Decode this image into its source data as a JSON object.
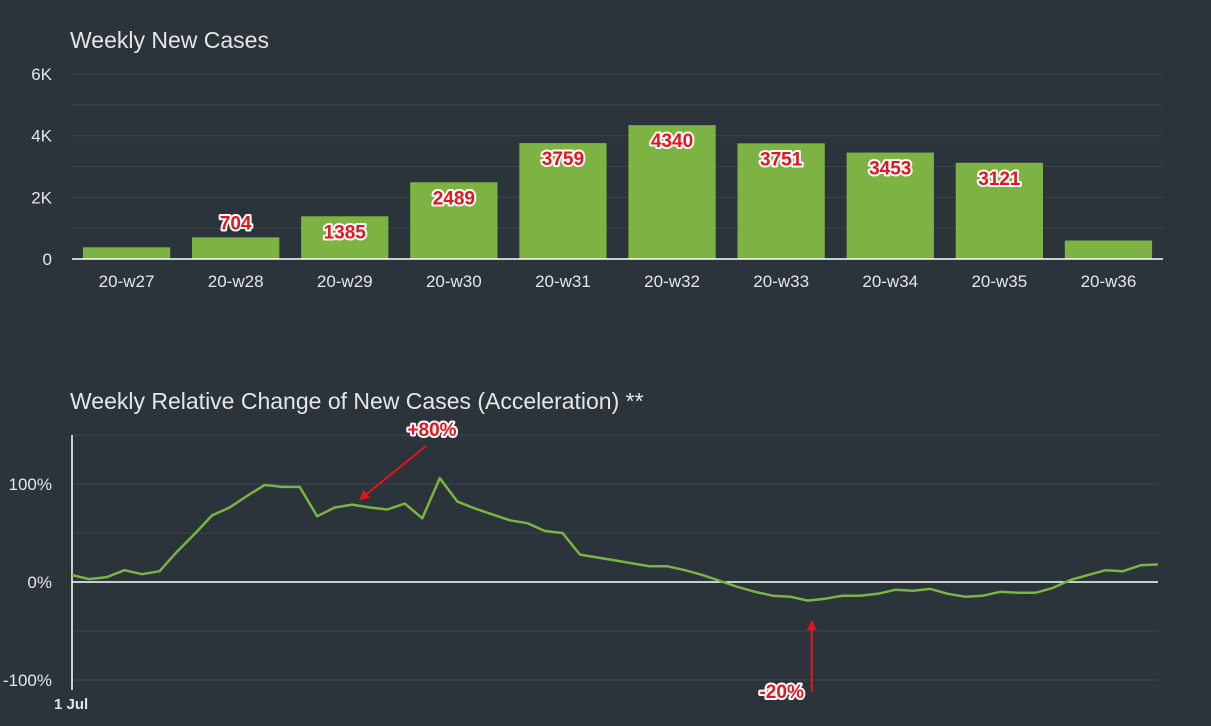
{
  "colors": {
    "background": "#2b333b",
    "bar": "#7cb342",
    "line": "#7cb342",
    "annotation": "#e8141b",
    "text": "#e6e6e6"
  },
  "chart_data": [
    {
      "type": "bar",
      "title": "Weekly New Cases",
      "categories": [
        "20-w27",
        "20-w28",
        "20-w29",
        "20-w30",
        "20-w31",
        "20-w32",
        "20-w33",
        "20-w34",
        "20-w35",
        "20-w36"
      ],
      "values": [
        380,
        704,
        1385,
        2489,
        3759,
        4340,
        3751,
        3453,
        3121,
        600
      ],
      "data_labels": [
        "",
        "704",
        "1385",
        "2489",
        "3759",
        "4340",
        "3751",
        "3453",
        "3121",
        ""
      ],
      "ylim": [
        0,
        6000
      ],
      "yticks": [
        0,
        2000,
        4000,
        6000
      ],
      "ytick_labels": [
        "0",
        "2K",
        "4K",
        "6K"
      ],
      "grid": true
    },
    {
      "type": "line",
      "title": "Weekly Relative Change of New Cases (Acceleration) **",
      "x_start_label": "1 Jul",
      "ylim": [
        -100,
        150
      ],
      "yticks": [
        -100,
        0,
        100
      ],
      "ytick_labels": [
        "-100%",
        "0%",
        "100%"
      ],
      "grid": true,
      "values": [
        7,
        3,
        5,
        12,
        8,
        11,
        31,
        49,
        68,
        76,
        88,
        99,
        97,
        97,
        67,
        76,
        79,
        76,
        74,
        80,
        65,
        106,
        82,
        75,
        69,
        63,
        60,
        52,
        50,
        28,
        25,
        22,
        19,
        16,
        16,
        12,
        7,
        1,
        -5,
        -10,
        -14,
        -15,
        -19,
        -17,
        -14,
        -14,
        -12,
        -8,
        -9,
        -7,
        -12,
        -15,
        -14,
        -10,
        -11,
        -11,
        -6,
        2,
        7,
        12,
        11,
        17,
        18
      ],
      "annotations": [
        {
          "text": "+80%",
          "value": 80
        },
        {
          "text": "-20%",
          "value": -20
        }
      ]
    }
  ]
}
